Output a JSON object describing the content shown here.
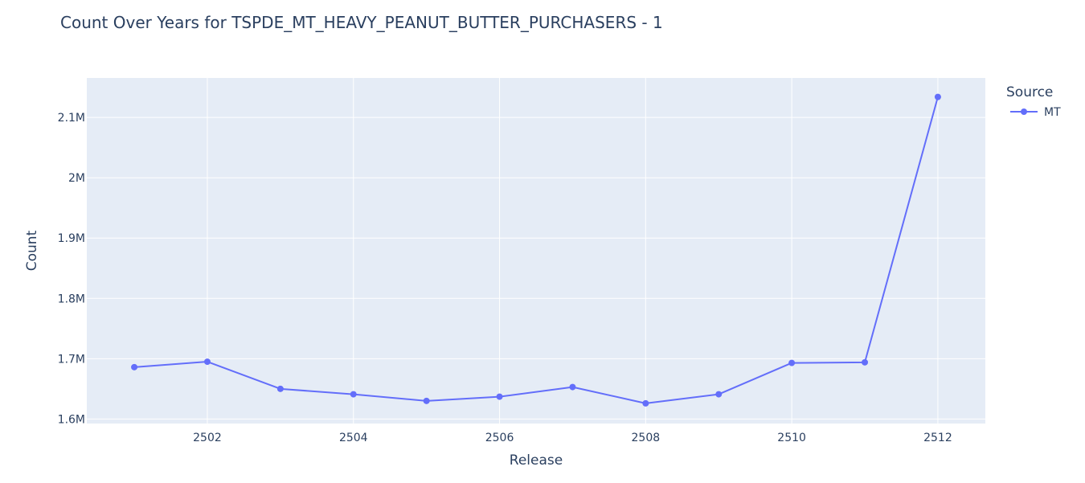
{
  "chart_data": {
    "type": "line",
    "title": "Count Over Years for TSPDE_MT_HEAVY_PEANUT_BUTTER_PURCHASERS - 1",
    "xlabel": "Release",
    "ylabel": "Count",
    "x": [
      2501,
      2502,
      2503,
      2504,
      2505,
      2506,
      2507,
      2508,
      2509,
      2510,
      2511,
      2512
    ],
    "series": [
      {
        "name": "MT",
        "color": "#636efa",
        "values": [
          1686000,
          1695000,
          1650000,
          1641000,
          1630000,
          1637000,
          1653000,
          1626000,
          1641000,
          1693000,
          1694000,
          2134000
        ]
      }
    ],
    "xlim": [
      2500.35,
      2512.65
    ],
    "ylim": [
      1592500,
      2165500
    ],
    "xticks": [
      2502,
      2504,
      2506,
      2508,
      2510,
      2512
    ],
    "xtick_labels": [
      "2502",
      "2504",
      "2506",
      "2508",
      "2510",
      "2512"
    ],
    "yticks": [
      1600000,
      1700000,
      1800000,
      1900000,
      2000000,
      2100000
    ],
    "ytick_labels": [
      "1.6M",
      "1.7M",
      "1.8M",
      "1.9M",
      "2M",
      "2.1M"
    ],
    "grid": true,
    "legend_title": "Source",
    "legend_position": "top-right",
    "plot_background": "#e5ecf6",
    "text_color": "#2a3f5f"
  }
}
